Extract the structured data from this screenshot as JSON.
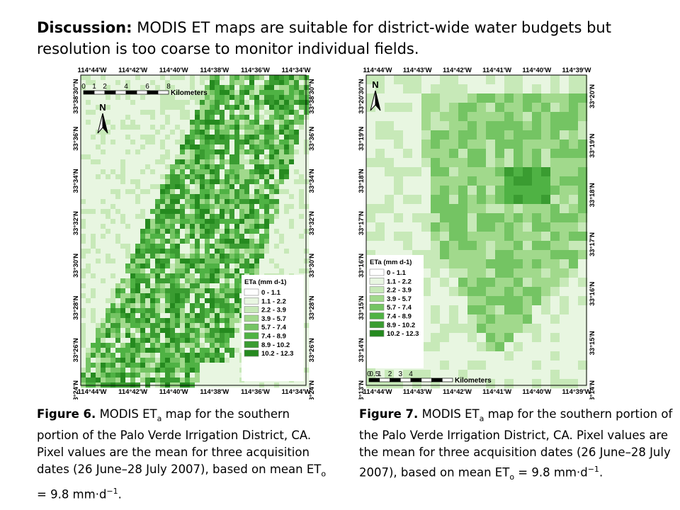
{
  "title": {
    "lead": "Discussion:",
    "text": "MODIS ET maps are suitable for district-wide water budgets but resolution is too coarse to monitor individual fields."
  },
  "figure6": {
    "top_ticks": [
      "114°44'W",
      "114°42'W",
      "114°40'W",
      "114°38'W",
      "114°36'W",
      "114°34'W"
    ],
    "bottom_ticks": [
      "114°44'W",
      "114°42'W",
      "114°40'W",
      "114°38'W",
      "114°36'W",
      "114°34'W"
    ],
    "left_ticks": [
      "33°38'30\"N",
      "33°36'N",
      "33°34'N",
      "33°32'N",
      "33°30'N",
      "33°28'N",
      "33°26'N",
      "33°24'N"
    ],
    "right_ticks": [
      "33°38'30\"N",
      "33°36'N",
      "33°34'N",
      "33°32'N",
      "33°30'N",
      "33°28'N",
      "33°26'N",
      "33°24'N"
    ],
    "scale_numbers": [
      "0",
      "1",
      "2",
      "4",
      "6",
      "8"
    ],
    "scale_unit": "Kilometers",
    "north": "N",
    "legend_title": "ETa (mm d-1)",
    "legend": [
      {
        "label": "0 - 1.1",
        "color": "#ffffff"
      },
      {
        "label": "1.1 - 2.2",
        "color": "#e8f6e1"
      },
      {
        "label": "2.2 - 3.9",
        "color": "#c7e9b8"
      },
      {
        "label": "3.9 - 5.7",
        "color": "#a1d98c"
      },
      {
        "label": "5.7 - 7.4",
        "color": "#74c463"
      },
      {
        "label": "7.4 - 8.9",
        "color": "#4fb244"
      },
      {
        "label": "8.9 - 10.2",
        "color": "#3a9c31"
      },
      {
        "label": "10.2 - 12.3",
        "color": "#258a1f"
      }
    ],
    "caption_bold": "Figure 6.",
    "caption_pre": "MODIS ET",
    "caption_sub": "a",
    "caption_mid": "map for the southern portion of the Palo Verde Irrigation District, CA. Pixel values are the mean for three acquisition dates (26 June–28 July 2007), based on mean ET",
    "caption_sub2": "o",
    "caption_end": "= 9.8 mm·d",
    "caption_sup": "−1",
    "caption_tail": "."
  },
  "figure7": {
    "top_ticks": [
      "114°44'W",
      "114°43'W",
      "114°42'W",
      "114°41'W",
      "114°40'W",
      "114°39'W"
    ],
    "bottom_ticks": [
      "114°44'W",
      "114°43'W",
      "114°42'W",
      "114°41'W",
      "114°40'W",
      "114°39'W"
    ],
    "left_ticks": [
      "33°20'30\"N",
      "33°19'N",
      "33°18'N",
      "33°17'N",
      "33°16'N",
      "33°15'N",
      "33°14'N",
      "33°13'N"
    ],
    "right_ticks": [
      "33°20'N",
      "33°19'N",
      "33°18'N",
      "33°17'N",
      "33°16'N",
      "33°15'N",
      "33°14'N"
    ],
    "scale_numbers": [
      "0",
      "0.5",
      "1",
      "2",
      "3",
      "4"
    ],
    "scale_unit": "Kilometers",
    "north": "N",
    "legend_title": "ETa (mm d-1)",
    "legend": [
      {
        "label": "0 - 1.1",
        "color": "#ffffff"
      },
      {
        "label": "1.1 - 2.2",
        "color": "#e8f6e1"
      },
      {
        "label": "2.2 - 3.9",
        "color": "#c7e9b8"
      },
      {
        "label": "3.9 - 5.7",
        "color": "#a1d98c"
      },
      {
        "label": "5.7 - 7.4",
        "color": "#74c463"
      },
      {
        "label": "7.4 - 8.9",
        "color": "#4fb244"
      },
      {
        "label": "8.9 - 10.2",
        "color": "#3a9c31"
      },
      {
        "label": "10.2 - 12.3",
        "color": "#258a1f"
      }
    ],
    "caption_bold": "Figure 7.",
    "caption_pre": "MODIS ET",
    "caption_sub": "a",
    "caption_mid": "map for the southern portion of the Palo Verde Irrigation District, CA. Pixel values are the mean for three acquisition dates (26 June–28 July 2007), based on mean ET",
    "caption_sub2": "o",
    "caption_end": "= 9.8 mm·d",
    "caption_sup": "−1",
    "caption_tail": "."
  }
}
